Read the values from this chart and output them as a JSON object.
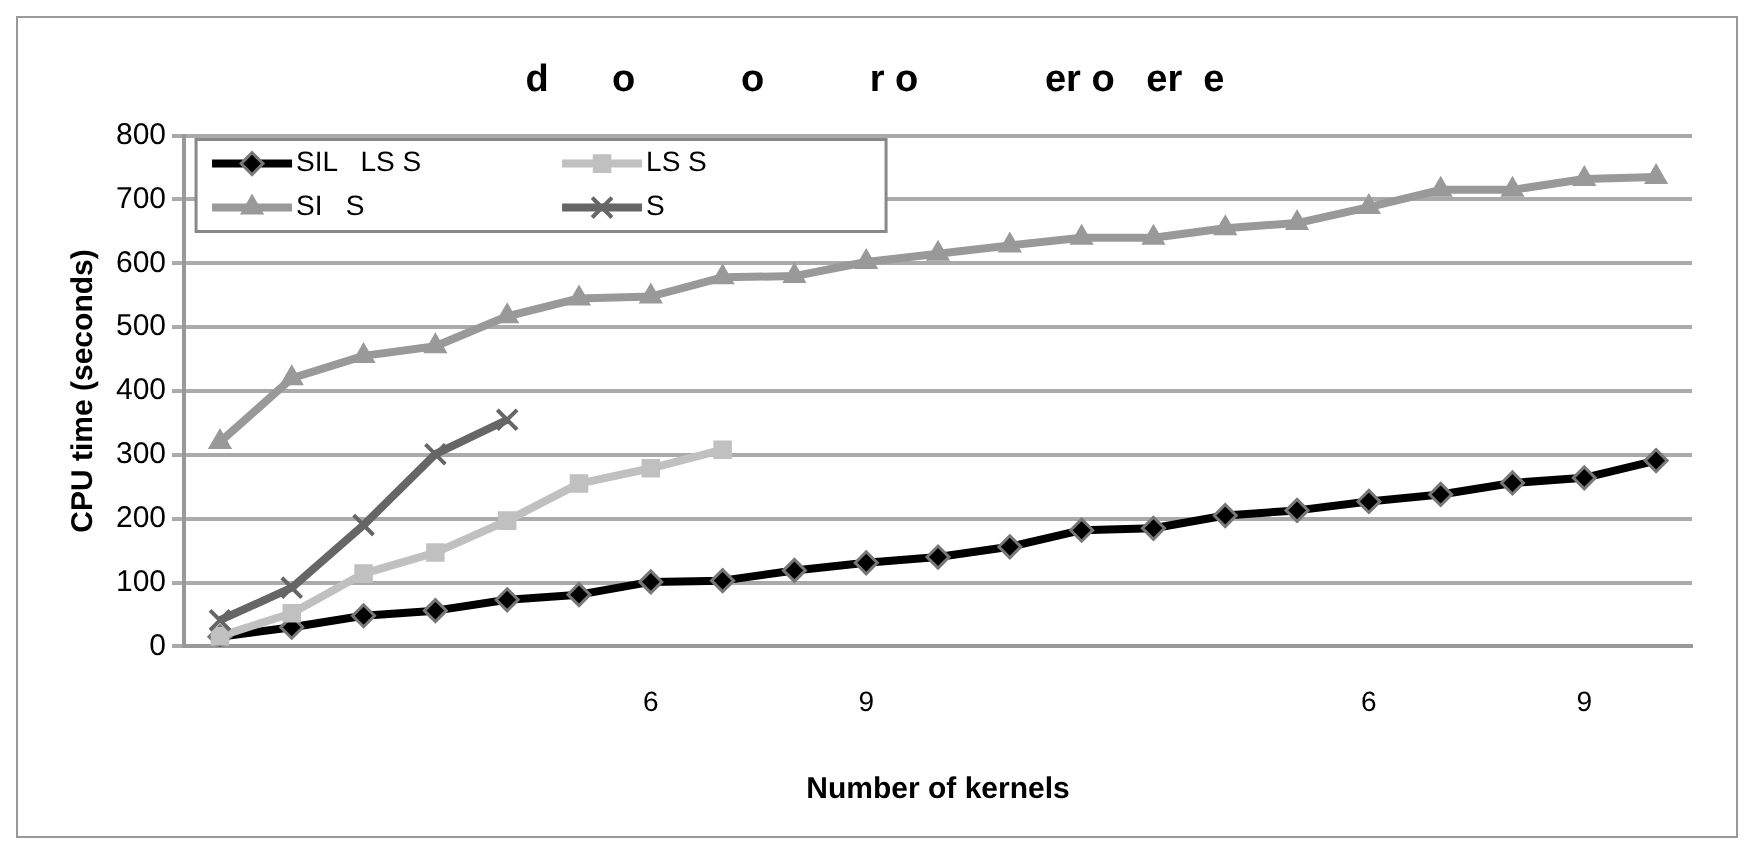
{
  "chart_data": {
    "type": "line",
    "title": "d      o          o          r o            er o   er  e",
    "xlabel": "Number of kernels",
    "ylabel": "CPU time (seconds)",
    "categories": [
      null,
      null,
      null,
      null,
      null,
      null,
      "6",
      null,
      null,
      "9",
      null,
      null,
      null,
      null,
      null,
      null,
      "6",
      null,
      null,
      "9",
      null
    ],
    "series": [
      {
        "name": "SIL   LS S",
        "color": "#000000",
        "marker": "diamond",
        "values": [
          15,
          30,
          48,
          56,
          73,
          81,
          101,
          103,
          119,
          131,
          140,
          156,
          182,
          185,
          205,
          213,
          227,
          238,
          256,
          264,
          291
        ]
      },
      {
        "name": "LS S",
        "color": "#c0c0c0",
        "marker": "square",
        "values": [
          16,
          52,
          114,
          147,
          197,
          255,
          279,
          308,
          null,
          null,
          null,
          null,
          null,
          null,
          null,
          null,
          null,
          null,
          null,
          null,
          null
        ]
      },
      {
        "name": "SI   S",
        "color": "#999999",
        "marker": "triangle",
        "values": [
          320,
          420,
          455,
          470,
          517,
          545,
          548,
          578,
          580,
          602,
          615,
          628,
          640,
          640,
          655,
          663,
          688,
          715,
          715,
          732,
          735
        ]
      },
      {
        "name": "S",
        "color": "#666666",
        "marker": "cross",
        "values": [
          41,
          92,
          190,
          301,
          355,
          null,
          null,
          null,
          null,
          null,
          null,
          null,
          null,
          null,
          null,
          null,
          null,
          null,
          null,
          null,
          null
        ]
      }
    ],
    "ylim": [
      0,
      800
    ],
    "yticks": [
      0,
      100,
      200,
      300,
      400,
      500,
      600,
      700,
      800
    ],
    "grid": "y",
    "legend": "top left",
    "line_style": "solid"
  }
}
